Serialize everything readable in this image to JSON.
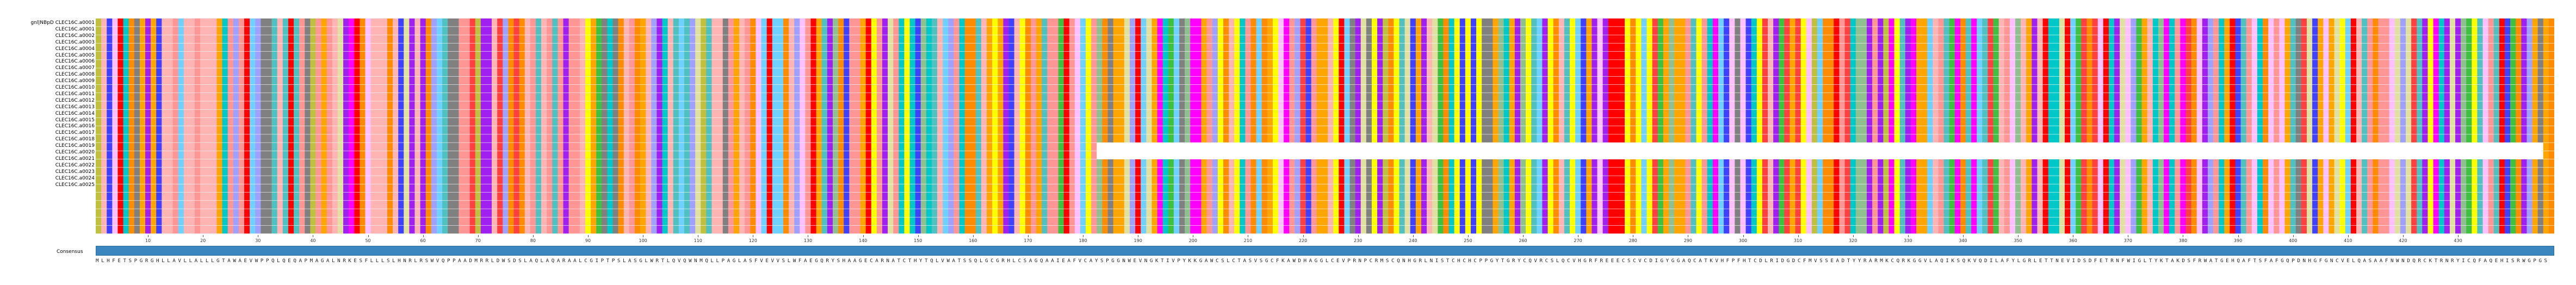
{
  "sequence_names": [
    "gnl|NBpD CLEC16C.a0001",
    "CLEC16C.a0001",
    "CLEC16C.a0002",
    "CLEC16C.a0003",
    "CLEC16C.a0004",
    "CLEC16C.a0005",
    "CLEC16C.a0006",
    "CLEC16C.a0007",
    "CLEC16C.a0008",
    "CLEC16C.a0009",
    "CLEC16C.a0010",
    "CLEC16C.a0011",
    "CLEC16C.a0012",
    "CLEC16C.a0013",
    "CLEC16C.a0014",
    "CLEC16C.a0015",
    "CLEC16C.a0016",
    "CLEC16C.a0017",
    "CLEC16C.a0018",
    "CLEC16C.a0019",
    "CLEC16C.a0020",
    "CLEC16C.a0021",
    "CLEC16C.a0022",
    "CLEC16C.a0023",
    "CLEC16C.a0024",
    "CLEC16C.a0025"
  ],
  "ruler_ticks": [
    "10",
    "20",
    "30",
    "40",
    "50",
    "60",
    "70",
    "80",
    "90",
    "100",
    "110",
    "120",
    "130",
    "140",
    "150",
    "160",
    "170",
    "180",
    "190",
    "200",
    "210",
    "220",
    "230",
    "240",
    "250",
    "260",
    "270",
    "280",
    "290",
    "300",
    "310",
    "320",
    "330",
    "340",
    "350",
    "360",
    "370",
    "380",
    "390",
    "400",
    "410",
    "420",
    "430"
  ],
  "consensus_label": "Consensus",
  "consensus_sequence": "MLHFETSPGRGHLLAVLLALLLGTAWAEVWPPQLQEQAPMAGALNRKESFLLLSLHNRLRSWVQPPAADMRRLDWSDSLAQLAQARAALCGIPTPSLASGLWRTLQVQWNMQLLPAGLASFVEVVSLWFAEGQRYSHAAGECARNATCTHYTQLVWATSSQLGCGRHLCSAGQAAIEAFVCAYSPGGNWEVNGKTIVPYKKGAWCSLCTASVSGCFKAWDHAGGLCEVPRNPCRMSCQNHGRLNISTCHCHCPPGYTGRYCQVRCSLQCVHGRFREEECSCVCDIGYGGAQCATKVHFPFHTCDLRIDGDCFMVSSEADTYYRARMKCQRKGGVLAQIKSQKVQDILAFYLGRLETTNEVIDSDFETRNFWIGLTYKTAKDSFRWATGEHQAFTSFAFGQPDNHGFGNCVELQASAAFNWNDQRCKTRNRYICQFAQEHISRWGPGS",
  "colors": {
    "A": "#ff9696",
    "R": "#a020f0",
    "N": "#e0e0a0",
    "D": "#ff4040",
    "C": "#ffff00",
    "Q": "#50c0c0",
    "E": "#ff0000",
    "G": "#ffa500",
    "H": "#4040ff",
    "I": "#40c040",
    "L": "#ffb4b4",
    "K": "#ff00ff",
    "M": "#c0c040",
    "F": "#ffc0ff",
    "P": "#808080",
    "S": "#ff8c00",
    "T": "#00c8c8",
    "W": "#a0a0ff",
    "Y": "#90c090",
    "V": "#70d0ff",
    "gap": "#ffffff",
    "consensus_bar": "#3c86c0"
  }
}
